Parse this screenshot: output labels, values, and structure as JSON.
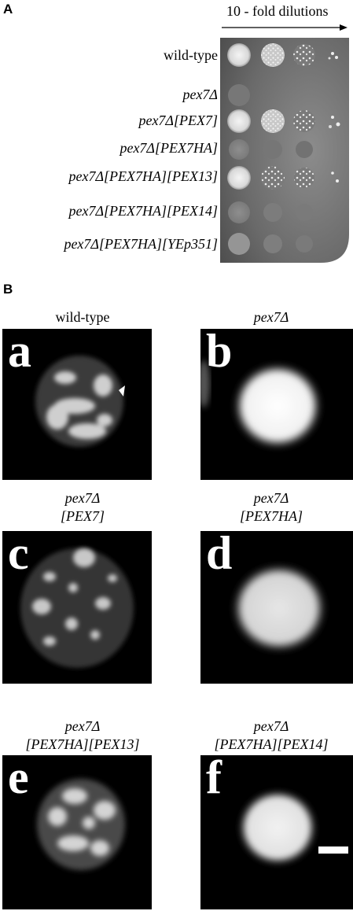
{
  "panelA": {
    "letter": "A",
    "dilution_title": "10 - fold dilutions",
    "strains": [
      "wild-type",
      "pex7Δ",
      "pex7Δ[PEX7]",
      "pex7Δ[PEX7HA]",
      "pex7Δ[PEX7HA][PEX13]",
      "pex7Δ[PEX7HA][PEX14]",
      "pex7Δ[PEX7HA][YEp351]"
    ]
  },
  "panelB": {
    "letter": "B",
    "images": [
      {
        "letter": "a",
        "caption_line1": "wild-type",
        "caption_line2": ""
      },
      {
        "letter": "b",
        "caption_line1": "pex7Δ",
        "caption_line2": ""
      },
      {
        "letter": "c",
        "caption_line1": "pex7Δ",
        "caption_line2": "[PEX7]"
      },
      {
        "letter": "d",
        "caption_line1": "pex7Δ",
        "caption_line2": "[PEX7HA]"
      },
      {
        "letter": "e",
        "caption_line1": "pex7Δ",
        "caption_line2": "[PEX7HA][PEX13]"
      },
      {
        "letter": "f",
        "caption_line1": "pex7Δ",
        "caption_line2": "[PEX7HA][PEX14]"
      }
    ]
  }
}
